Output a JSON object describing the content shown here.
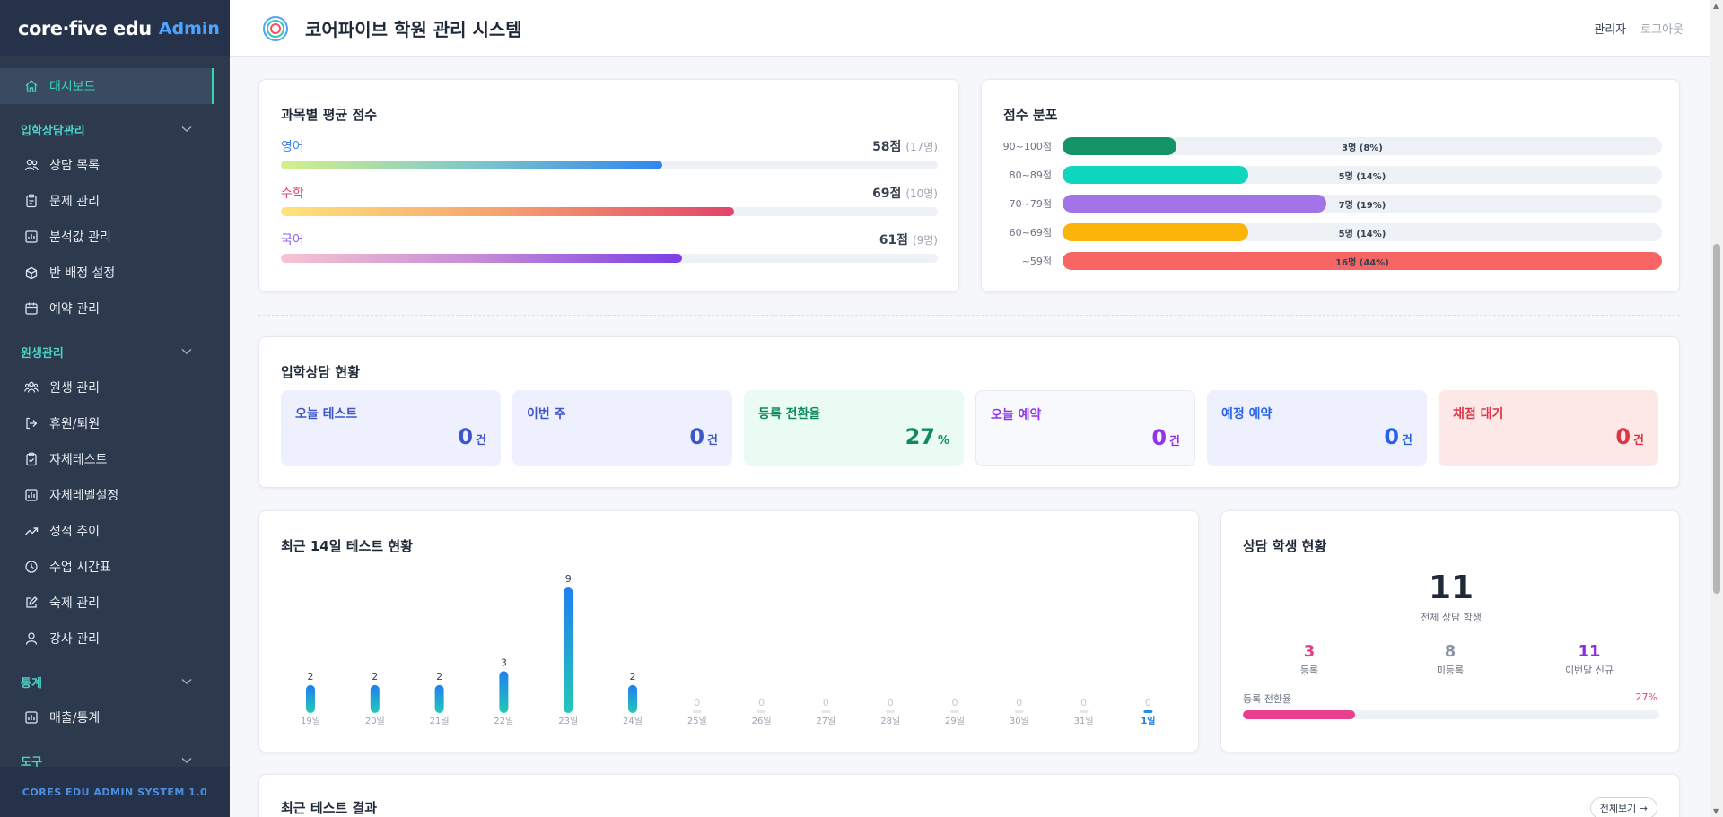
{
  "sidebar": {
    "brand": "core·five edu",
    "admin_label": "Admin",
    "dashboard": "대시보드",
    "sections": [
      {
        "title": "입학상담관리",
        "items": [
          {
            "label": "상담 목록",
            "icon": "users-icon"
          },
          {
            "label": "문제 관리",
            "icon": "clipboard-icon"
          },
          {
            "label": "분석값 관리",
            "icon": "bar-chart-icon"
          },
          {
            "label": "반 배정 설정",
            "icon": "box-icon"
          },
          {
            "label": "예약 관리",
            "icon": "calendar-icon"
          }
        ]
      },
      {
        "title": "원생관리",
        "items": [
          {
            "label": "원생 관리",
            "icon": "group-icon"
          },
          {
            "label": "휴원/퇴원",
            "icon": "logout-icon"
          },
          {
            "label": "자체테스트",
            "icon": "clipboard-check-icon"
          },
          {
            "label": "자체레벨설정",
            "icon": "bar-chart-icon"
          },
          {
            "label": "성적 추이",
            "icon": "trend-icon"
          },
          {
            "label": "수업 시간표",
            "icon": "clock-icon"
          },
          {
            "label": "숙제 관리",
            "icon": "edit-icon"
          },
          {
            "label": "강사 관리",
            "icon": "user-icon"
          }
        ]
      },
      {
        "title": "통계",
        "items": [
          {
            "label": "매출/통계",
            "icon": "bar-chart-icon"
          }
        ]
      },
      {
        "title": "도구",
        "items": []
      }
    ],
    "footer": "CORES EDU ADMIN SYSTEM 1.0"
  },
  "topbar": {
    "title": "코어파이브 학원 관리 시스템",
    "admin": "관리자",
    "logout": "로그아웃"
  },
  "subject_avg": {
    "title": "과목별 평균 점수",
    "subjects": [
      {
        "name": "영어",
        "score": "58점",
        "count": "(17명)",
        "value": 58,
        "color": "#3b82f6"
      },
      {
        "name": "수학",
        "score": "69점",
        "count": "(10명)",
        "value": 69,
        "color": "#e0446a"
      },
      {
        "name": "국어",
        "score": "61점",
        "count": "(9명)",
        "value": 61,
        "color": "#8b5cf6"
      }
    ]
  },
  "distribution": {
    "title": "점수 분포",
    "rows": [
      {
        "label": "90~100점",
        "text": "3명 (8%)",
        "value": 0.19,
        "color": "#129466"
      },
      {
        "label": "80~89점",
        "text": "5명 (14%)",
        "value": 0.31,
        "color": "#0fd6bf"
      },
      {
        "label": "70~79점",
        "text": "7명 (19%)",
        "value": 0.44,
        "color": "#a374e8"
      },
      {
        "label": "60~69점",
        "text": "5명 (14%)",
        "value": 0.31,
        "color": "#fbb40a"
      },
      {
        "label": "~59점",
        "text": "16명 (44%)",
        "value": 1.0,
        "color": "#f76565"
      }
    ]
  },
  "admission": {
    "title": "입학상담 현황",
    "stats": [
      {
        "label": "오늘 테스트",
        "value": "0",
        "unit": "건",
        "bg": "#eef1fd",
        "fg": "#3f56c9"
      },
      {
        "label": "이번 주",
        "value": "0",
        "unit": "건",
        "bg": "#eef1fd",
        "fg": "#3f56c9"
      },
      {
        "label": "등록 전환율",
        "value": "27",
        "unit": "%",
        "bg": "#e9fbf3",
        "fg": "#0f8a5f"
      },
      {
        "label": "오늘 예약",
        "value": "0",
        "unit": "건",
        "bg": "#f8f9fc",
        "fg": "#9333ea"
      },
      {
        "label": "예정 예약",
        "value": "0",
        "unit": "건",
        "bg": "#eef1fd",
        "fg": "#2563eb"
      },
      {
        "label": "채점 대기",
        "value": "0",
        "unit": "건",
        "bg": "#fde8e8",
        "fg": "#dc3545"
      }
    ]
  },
  "chart_data": {
    "type": "bar",
    "title": "최근 14일 테스트 현황",
    "categories": [
      "19일",
      "20일",
      "21일",
      "22일",
      "23일",
      "24일",
      "25일",
      "26일",
      "27일",
      "28일",
      "29일",
      "30일",
      "31일",
      "1일"
    ],
    "values": [
      2,
      2,
      2,
      3,
      9,
      2,
      0,
      0,
      0,
      0,
      0,
      0,
      0,
      0
    ],
    "highlight": "1일",
    "ylim": [
      0,
      9
    ]
  },
  "students": {
    "title": "상담 학생 현황",
    "total": "11",
    "total_label": "전체 상담 학생",
    "registered": "3",
    "registered_label": "등록",
    "unregistered": "8",
    "unregistered_label": "미등록",
    "new_month": "11",
    "new_month_label": "이번달 신규",
    "conversion_label": "등록 전환율",
    "conversion_value": "27%",
    "conversion": 0.27
  },
  "recent": {
    "title": "최근 테스트 결과",
    "view_all": "전체보기 →"
  }
}
